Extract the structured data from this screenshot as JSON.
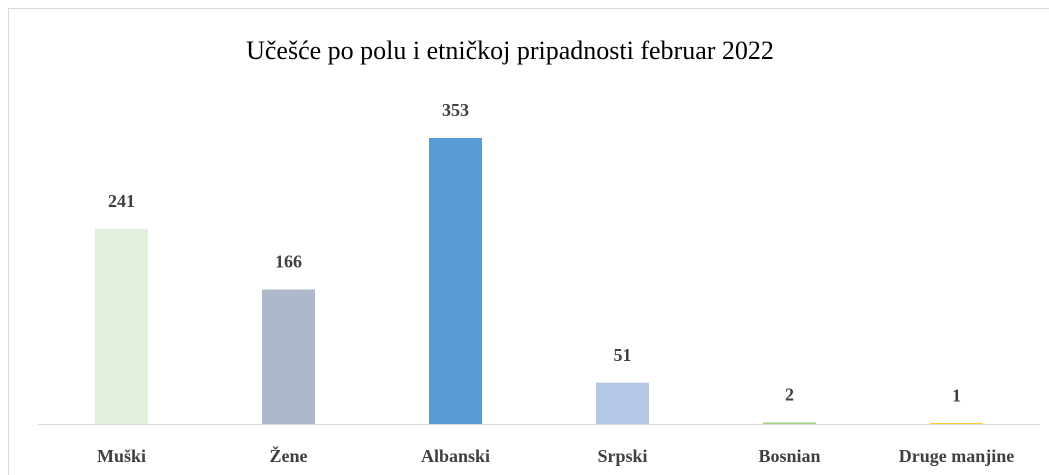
{
  "chart_data": {
    "type": "bar",
    "title": "Učešće po polu i etničkoj  pripadnosti  februar 2022",
    "categories": [
      "Muški",
      "Žene",
      "Albanski",
      "Srpski",
      "Bosnian",
      "Druge manjine"
    ],
    "values": [
      241,
      166,
      353,
      51,
      2,
      1
    ],
    "colors": [
      "#e2efda",
      "#adb9ca",
      "#5b9bd5",
      "#b4c7e7",
      "#a9d18e",
      "#ffc000"
    ],
    "grid": false
  }
}
